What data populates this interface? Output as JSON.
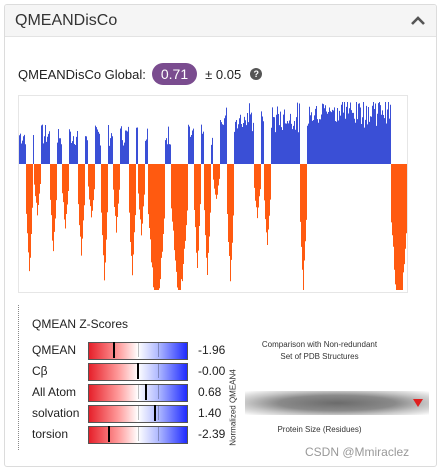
{
  "panel": {
    "title": "QMEANDisCo",
    "collapse_icon": "chevron-up-icon"
  },
  "global": {
    "label": "QMEANDisCo Global:",
    "score": "0.71",
    "error": "± 0.05",
    "help_icon": "question-circle-icon",
    "badge_color": "#7a4c8f"
  },
  "local_plot": {
    "above_color": "#3a4fd6",
    "below_color": "#ff5a10"
  },
  "zscores": {
    "title": "QMEAN Z-Scores",
    "rows": [
      {
        "label": "QMEAN",
        "value": "-1.96",
        "z": -1.96
      },
      {
        "label": "Cβ",
        "value": "-0.00",
        "z": -0.0
      },
      {
        "label": "All Atom",
        "value": "0.68",
        "z": 0.68
      },
      {
        "label": "solvation",
        "value": "1.40",
        "z": 1.4
      },
      {
        "label": "torsion",
        "value": "-2.39",
        "z": -2.39
      }
    ]
  },
  "comparison": {
    "title_line1": "Comparison with Non-redundant",
    "title_line2": "Set of PDB Structures",
    "ylabel": "Normalized QMEAN4",
    "xlabel": "Protein Size (Residues)"
  },
  "watermark": "CSDN @Mmiraclez"
}
